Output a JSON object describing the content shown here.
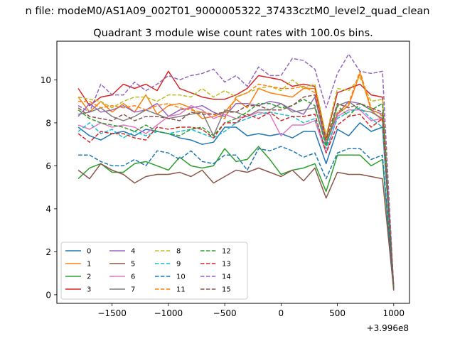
{
  "chart_data": {
    "type": "line",
    "suptitle": "n file: modeM0/AS1A09_002T01_9000005322_37433cztM0_level2_quad_clean",
    "title": "Quadrant 3 module wise count rates with 100.0s bins.",
    "xlabel": "",
    "ylabel": "",
    "x_offset_label": "+3.996e8",
    "xlim": [
      -1990,
      1140
    ],
    "ylim": [
      -0.4,
      11.8
    ],
    "xticks": [
      -1500,
      -1000,
      -500,
      0,
      500,
      1000
    ],
    "xtick_labels": [
      "−1500",
      "−1000",
      "−500",
      "0",
      "500",
      "1000"
    ],
    "yticks": [
      0,
      2,
      4,
      6,
      8,
      10
    ],
    "ytick_labels": [
      "0",
      "2",
      "4",
      "6",
      "8",
      "10"
    ],
    "grid": false,
    "legend_position": "lower-left",
    "legend_columns": 4,
    "x": [
      -1800,
      -1700,
      -1600,
      -1500,
      -1400,
      -1300,
      -1200,
      -1100,
      -1000,
      -900,
      -800,
      -700,
      -600,
      -500,
      -400,
      -300,
      -200,
      -100,
      0,
      100,
      200,
      300,
      400,
      500,
      600,
      700,
      800,
      900,
      1000
    ],
    "series": [
      {
        "name": "0",
        "color": "#1f77b4",
        "dash": "solid",
        "values": [
          7.8,
          7.4,
          7.2,
          7.5,
          7.6,
          7.4,
          7.7,
          7.6,
          7.5,
          7.3,
          7.2,
          7.0,
          7.1,
          7.8,
          7.8,
          7.4,
          7.5,
          7.4,
          7.5,
          7.3,
          7.6,
          7.6,
          6.1,
          7.7,
          7.4,
          8.0,
          7.6,
          7.8,
          0.3
        ]
      },
      {
        "name": "1",
        "color": "#ff7f0e",
        "dash": "solid",
        "values": [
          9.2,
          8.5,
          9.0,
          8.5,
          8.9,
          8.5,
          9.3,
          8.4,
          8.8,
          8.9,
          8.7,
          8.2,
          8.3,
          8.5,
          9.1,
          8.7,
          9.6,
          9.4,
          9.3,
          9.2,
          9.6,
          9.6,
          7.2,
          8.4,
          8.8,
          10.3,
          8.6,
          8.1,
          0.3
        ]
      },
      {
        "name": "2",
        "color": "#2ca02c",
        "dash": "solid",
        "values": [
          5.4,
          5.9,
          6.1,
          5.7,
          5.7,
          6.1,
          6.2,
          6.0,
          5.8,
          6.4,
          6.0,
          5.9,
          6.0,
          6.8,
          6.2,
          6.3,
          6.9,
          6.3,
          5.6,
          5.8,
          5.9,
          6.1,
          4.8,
          6.5,
          6.5,
          6.5,
          6.0,
          6.3,
          0.2
        ]
      },
      {
        "name": "3",
        "color": "#d62728",
        "dash": "solid",
        "values": [
          9.6,
          8.8,
          9.2,
          9.3,
          9.8,
          9.6,
          9.8,
          9.5,
          10.4,
          9.6,
          9.4,
          9.2,
          9.1,
          9.1,
          9.3,
          9.6,
          10.2,
          10.1,
          10.0,
          9.7,
          9.8,
          9.7,
          7.3,
          9.4,
          9.6,
          9.8,
          9.3,
          9.2,
          0.3
        ]
      },
      {
        "name": "4",
        "color": "#9467bd",
        "dash": "solid",
        "values": [
          8.3,
          8.9,
          8.5,
          8.6,
          8.8,
          8.5,
          8.6,
          8.9,
          8.3,
          8.6,
          8.7,
          8.8,
          8.5,
          8.3,
          8.9,
          8.9,
          8.8,
          9.0,
          8.9,
          8.6,
          8.4,
          9.2,
          7.0,
          8.4,
          9.0,
          8.9,
          8.6,
          8.4,
          0.3
        ]
      },
      {
        "name": "5",
        "color": "#8c564b",
        "dash": "solid",
        "values": [
          5.8,
          5.4,
          6.1,
          5.8,
          5.6,
          5.2,
          5.5,
          5.6,
          5.6,
          5.7,
          5.5,
          5.8,
          5.2,
          5.5,
          5.8,
          5.7,
          5.9,
          5.7,
          5.5,
          5.8,
          5.3,
          5.9,
          4.5,
          5.7,
          5.6,
          5.6,
          5.5,
          5.4,
          0.2
        ]
      },
      {
        "name": "6",
        "color": "#e377c2",
        "dash": "solid",
        "values": [
          7.9,
          7.7,
          8.0,
          7.8,
          7.9,
          7.8,
          7.5,
          7.9,
          8.3,
          8.4,
          8.8,
          8.6,
          8.2,
          8.4,
          8.2,
          8.3,
          8.5,
          8.4,
          7.4,
          7.9,
          7.9,
          8.1,
          6.6,
          8.3,
          8.6,
          8.6,
          8.1,
          8.2,
          0.3
        ]
      },
      {
        "name": "7",
        "color": "#7f7f7f",
        "dash": "solid",
        "values": [
          8.4,
          8.5,
          8.7,
          8.3,
          8.1,
          8.3,
          8.6,
          8.4,
          8.2,
          8.3,
          8.4,
          8.5,
          7.4,
          8.6,
          8.5,
          8.3,
          8.6,
          8.6,
          8.9,
          8.5,
          8.6,
          8.7,
          7.0,
          8.8,
          9.0,
          8.6,
          8.5,
          8.2,
          0.3
        ]
      },
      {
        "name": "8",
        "color": "#bcbd22",
        "dash": "dashed",
        "values": [
          9.2,
          9.1,
          9.0,
          8.7,
          9.0,
          9.2,
          9.2,
          9.0,
          9.3,
          9.3,
          9.2,
          9.6,
          9.2,
          9.5,
          9.2,
          9.4,
          9.6,
          9.7,
          9.5,
          10.0,
          9.6,
          9.8,
          7.4,
          9.6,
          9.5,
          10.1,
          9.0,
          9.1,
          0.4
        ]
      },
      {
        "name": "9",
        "color": "#17becf",
        "dash": "dashed",
        "values": [
          7.6,
          8.0,
          7.5,
          7.7,
          7.3,
          7.6,
          7.4,
          7.6,
          7.5,
          7.6,
          7.7,
          7.5,
          7.3,
          7.6,
          8.0,
          8.2,
          8.4,
          8.5,
          8.4,
          8.3,
          8.0,
          8.2,
          6.8,
          8.2,
          8.5,
          8.7,
          8.2,
          7.8,
          0.3
        ]
      },
      {
        "name": "10",
        "color": "#1f77b4",
        "dash": "dashed",
        "values": [
          6.5,
          6.5,
          6.2,
          6.0,
          6.0,
          6.3,
          6.0,
          6.7,
          6.6,
          6.3,
          6.7,
          6.2,
          6.1,
          6.5,
          6.5,
          5.8,
          6.8,
          6.7,
          6.9,
          6.7,
          6.4,
          6.6,
          5.4,
          6.6,
          6.8,
          6.8,
          6.3,
          6.5,
          0.3
        ]
      },
      {
        "name": "11",
        "color": "#ff7f0e",
        "dash": "dashed",
        "values": [
          9.0,
          9.0,
          8.7,
          8.8,
          8.7,
          8.8,
          8.6,
          8.8,
          8.9,
          8.7,
          8.6,
          8.5,
          8.4,
          8.2,
          9.2,
          9.4,
          9.8,
          9.7,
          9.6,
          9.6,
          9.7,
          9.4,
          7.2,
          8.5,
          8.9,
          10.4,
          8.7,
          8.3,
          0.3
        ]
      },
      {
        "name": "12",
        "color": "#2ca02c",
        "dash": "dashed",
        "values": [
          8.6,
          8.2,
          8.0,
          7.9,
          7.8,
          7.6,
          7.9,
          7.6,
          7.5,
          7.4,
          7.7,
          7.8,
          7.4,
          8.0,
          8.2,
          8.5,
          8.9,
          8.9,
          8.7,
          8.8,
          9.1,
          8.8,
          6.9,
          8.8,
          8.3,
          8.9,
          8.6,
          8.9,
          0.3
        ]
      },
      {
        "name": "13",
        "color": "#d62728",
        "dash": "dashed",
        "values": [
          7.5,
          7.1,
          7.6,
          7.5,
          7.5,
          7.3,
          7.2,
          7.8,
          7.7,
          7.8,
          7.8,
          7.7,
          7.3,
          8.0,
          8.0,
          8.4,
          8.2,
          8.5,
          8.1,
          8.3,
          8.3,
          8.4,
          6.6,
          7.9,
          8.3,
          8.4,
          7.8,
          8.2,
          0.3
        ]
      },
      {
        "name": "14",
        "color": "#9467bd",
        "dash": "dashed",
        "values": [
          8.8,
          8.5,
          9.8,
          9.3,
          9.3,
          9.9,
          9.5,
          9.8,
          10.2,
          10.0,
          10.2,
          10.3,
          10.5,
          9.9,
          10.2,
          9.7,
          10.6,
          10.2,
          10.2,
          11.0,
          10.9,
          10.5,
          8.7,
          10.3,
          11.2,
          10.4,
          10.3,
          10.4,
          0.3
        ]
      },
      {
        "name": "15",
        "color": "#8c564b",
        "dash": "dashed",
        "values": [
          8.7,
          8.3,
          8.2,
          8.1,
          8.4,
          8.1,
          8.3,
          8.3,
          8.2,
          8.1,
          8.5,
          8.4,
          8.4,
          8.5,
          8.5,
          8.8,
          8.8,
          8.6,
          8.6,
          8.8,
          9.2,
          9.3,
          7.2,
          8.9,
          8.7,
          8.9,
          8.7,
          8.5,
          0.3
        ]
      }
    ]
  }
}
